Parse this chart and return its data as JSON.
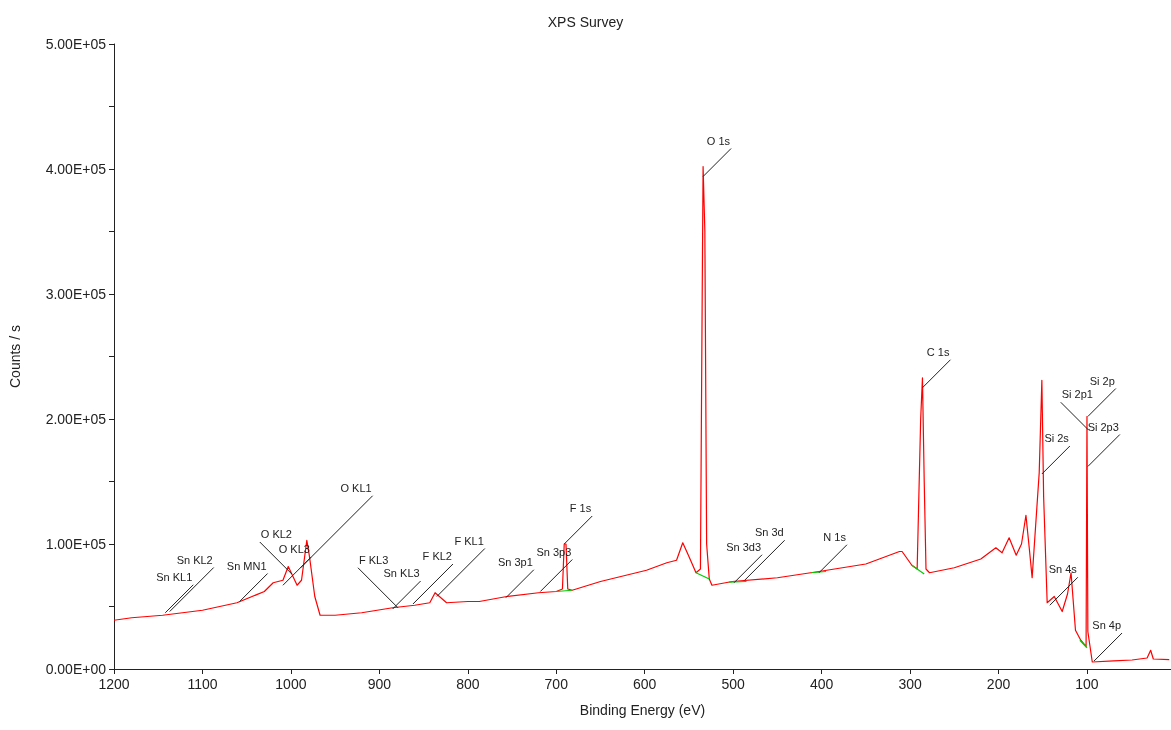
{
  "chart_data": {
    "type": "line",
    "title": "XPS Survey",
    "xlabel": "Binding Energy (eV)",
    "ylabel": "Counts / s",
    "xlim": [
      1200,
      5
    ],
    "xticks": [
      1200,
      1100,
      1000,
      900,
      800,
      700,
      600,
      500,
      400,
      300,
      200,
      100
    ],
    "ylim": [
      0,
      500000
    ],
    "yticks": [
      {
        "value": 0,
        "label": "0.00E+00"
      },
      {
        "value": 50000,
        "label": null
      },
      {
        "value": 100000,
        "label": "1.00E+05"
      },
      {
        "value": 150000,
        "label": null
      },
      {
        "value": 200000,
        "label": "2.00E+05"
      },
      {
        "value": 250000,
        "label": null
      },
      {
        "value": 300000,
        "label": "3.00E+05"
      },
      {
        "value": 350000,
        "label": null
      },
      {
        "value": 400000,
        "label": "4.00E+05"
      },
      {
        "value": 450000,
        "label": null
      },
      {
        "value": 500000,
        "label": "5.00E+05"
      }
    ],
    "grid": false,
    "marker": "none",
    "line_style": "solid",
    "series": [
      {
        "color": "#ff0000",
        "x": [
          1200,
          1180,
          1145,
          1100,
          1061,
          1030,
          1020,
          1009,
          1003,
          993,
          988,
          982,
          979,
          973,
          967,
          950,
          920,
          885,
          860,
          843,
          837,
          824,
          800,
          787,
          756,
          720,
          700,
          693,
          691,
          689,
          687,
          682,
          650,
          598,
          575,
          564,
          557,
          550,
          542,
          537,
          535,
          534,
          532,
          530,
          527,
          524,
          501,
          450,
          403,
          350,
          312,
          309,
          298,
          292,
          288,
          286,
          284,
          282,
          278,
          250,
          220,
          203,
          196,
          188,
          180,
          174,
          169,
          165,
          162,
          154,
          151,
          149,
          145,
          137,
          128,
          122,
          118,
          113,
          107,
          101,
          100,
          99,
          94,
          70,
          49,
          32,
          28,
          25,
          7
        ],
        "values": [
          39000,
          41000,
          43000,
          47000,
          53000,
          62000,
          69000,
          71000,
          82000,
          67000,
          71000,
          103000,
          90000,
          58000,
          43000,
          43000,
          45000,
          49000,
          51000,
          53000,
          61000,
          53000,
          54000,
          54000,
          58000,
          61000,
          62000,
          64000,
          100000,
          100000,
          64000,
          63000,
          70000,
          79000,
          85000,
          87000,
          101000,
          90000,
          77000,
          80000,
          300000,
          402000,
          350000,
          100000,
          72000,
          67000,
          70000,
          73000,
          78000,
          84000,
          94000,
          94000,
          83000,
          80000,
          200000,
          233000,
          150000,
          80000,
          77000,
          81000,
          88000,
          97000,
          93000,
          105000,
          91000,
          100000,
          123000,
          95000,
          73000,
          157000,
          231000,
          138000,
          53000,
          58000,
          46000,
          60000,
          77000,
          31000,
          23000,
          18000,
          202000,
          30000,
          5600,
          6500,
          7200,
          8800,
          15000,
          8000,
          7500
        ]
      },
      {
        "color": "#00cc00",
        "x": [
          700,
          682
        ],
        "values": [
          62000,
          63000
        ]
      },
      {
        "color": "#00cc00",
        "x": [
          542,
          527
        ],
        "values": [
          77000,
          72000
        ]
      },
      {
        "color": "#00cc00",
        "x": [
          505,
          485
        ],
        "values": [
          69500,
          70000
        ]
      },
      {
        "color": "#00cc00",
        "x": [
          412,
          395
        ],
        "values": [
          77000,
          78000
        ]
      },
      {
        "color": "#00cc00",
        "x": [
          298,
          284
        ],
        "values": [
          83000,
          76000
        ]
      },
      {
        "color": "#00cc00",
        "x": [
          108,
          100
        ],
        "values": [
          23000,
          17000
        ]
      }
    ],
    "annotations": [
      {
        "text": "Sn KL1",
        "x": 1142,
        "y": 45000
      },
      {
        "text": "Sn KL2",
        "x": 1137,
        "y": 46000
      },
      {
        "text": "Sn MN1",
        "x": 1058,
        "y": 54000
      },
      {
        "text": "O KL3",
        "x": 1009,
        "y": 67000
      },
      {
        "text": "O KL2",
        "x": 999,
        "y": 76000
      },
      {
        "text": "O KL1",
        "x": 989,
        "y": 81000
      },
      {
        "text": "Sn KL3",
        "x": 885,
        "y": 48000
      },
      {
        "text": "F KL3",
        "x": 879,
        "y": 49000
      },
      {
        "text": "F KL2",
        "x": 862,
        "y": 52000
      },
      {
        "text": "F KL1",
        "x": 835,
        "y": 58000
      },
      {
        "text": "Sn 3p1",
        "x": 757,
        "y": 57000
      },
      {
        "text": "Sn 3p3",
        "x": 718,
        "y": 62000
      },
      {
        "text": "F 1s",
        "x": 691,
        "y": 100000
      },
      {
        "text": "O 1s",
        "x": 534,
        "y": 394000
      },
      {
        "text": "Sn 3d3",
        "x": 499,
        "y": 69000
      },
      {
        "text": "Sn 3d",
        "x": 487,
        "y": 71000
      },
      {
        "text": "N 1s",
        "x": 403,
        "y": 77000
      },
      {
        "text": "C 1s",
        "x": 286,
        "y": 225000
      },
      {
        "text": "Si 2s",
        "x": 151,
        "y": 156000
      },
      {
        "text": "Sn 4s",
        "x": 142,
        "y": 51000
      },
      {
        "text": "Si 2p",
        "x": 99,
        "y": 202000
      },
      {
        "text": "Si 2p1",
        "x": 98,
        "y": 191000
      },
      {
        "text": "Si 2p3",
        "x": 99,
        "y": 162000
      },
      {
        "text": "Sn 4p",
        "x": 92,
        "y": 6400
      }
    ]
  }
}
